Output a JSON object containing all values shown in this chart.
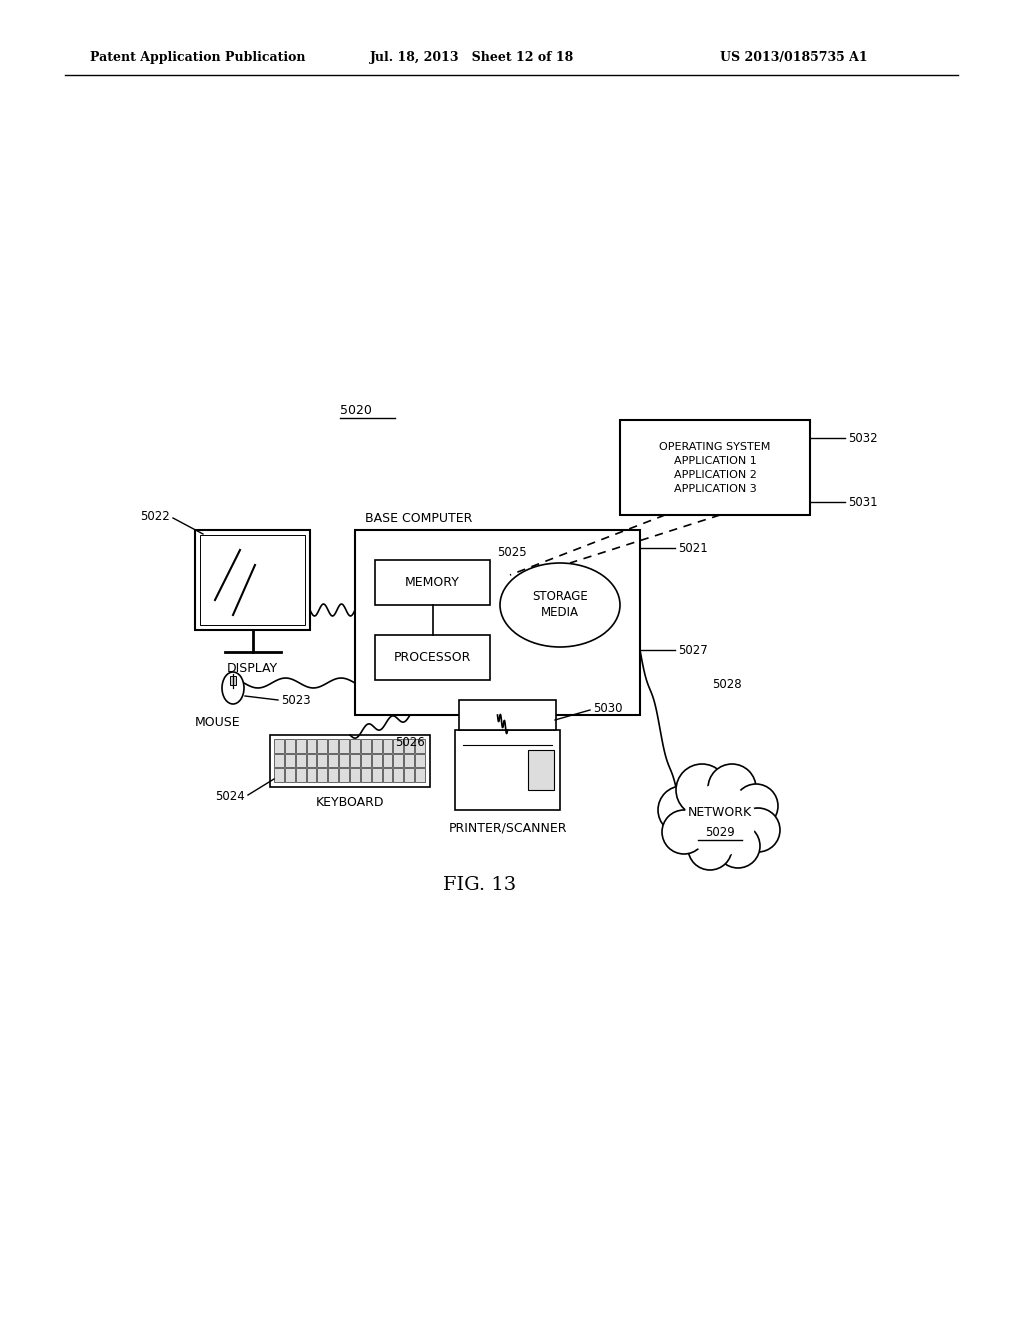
{
  "header_left": "Patent Application Publication",
  "header_mid": "Jul. 18, 2013   Sheet 12 of 18",
  "header_right": "US 2013/0185735 A1",
  "fig_label": "FIG. 13",
  "label_5020": "5020",
  "label_5021": "5021",
  "label_5022": "5022",
  "label_5023": "5023",
  "label_5024": "5024",
  "label_5025": "5025",
  "label_5026": "5026",
  "label_5027": "5027",
  "label_5028": "5028",
  "label_5029": "5029",
  "label_5030": "5030",
  "label_5031": "5031",
  "label_5032": "5032",
  "text_display": "DISPLAY",
  "text_mouse": "MOUSE",
  "text_keyboard": "KEYBOARD",
  "text_base_computer": "BASE COMPUTER",
  "text_memory": "MEMORY",
  "text_processor": "PROCESSOR",
  "text_storage": "STORAGE\nMEDIA",
  "text_printer": "PRINTER/SCANNER",
  "text_network": "NETWORK",
  "text_os_box": "OPERATING SYSTEM\nAPPLICATION 1\nAPPLICATION 2\nAPPLICATION 3",
  "bg_color": "#ffffff",
  "line_color": "#000000",
  "text_color": "#000000"
}
